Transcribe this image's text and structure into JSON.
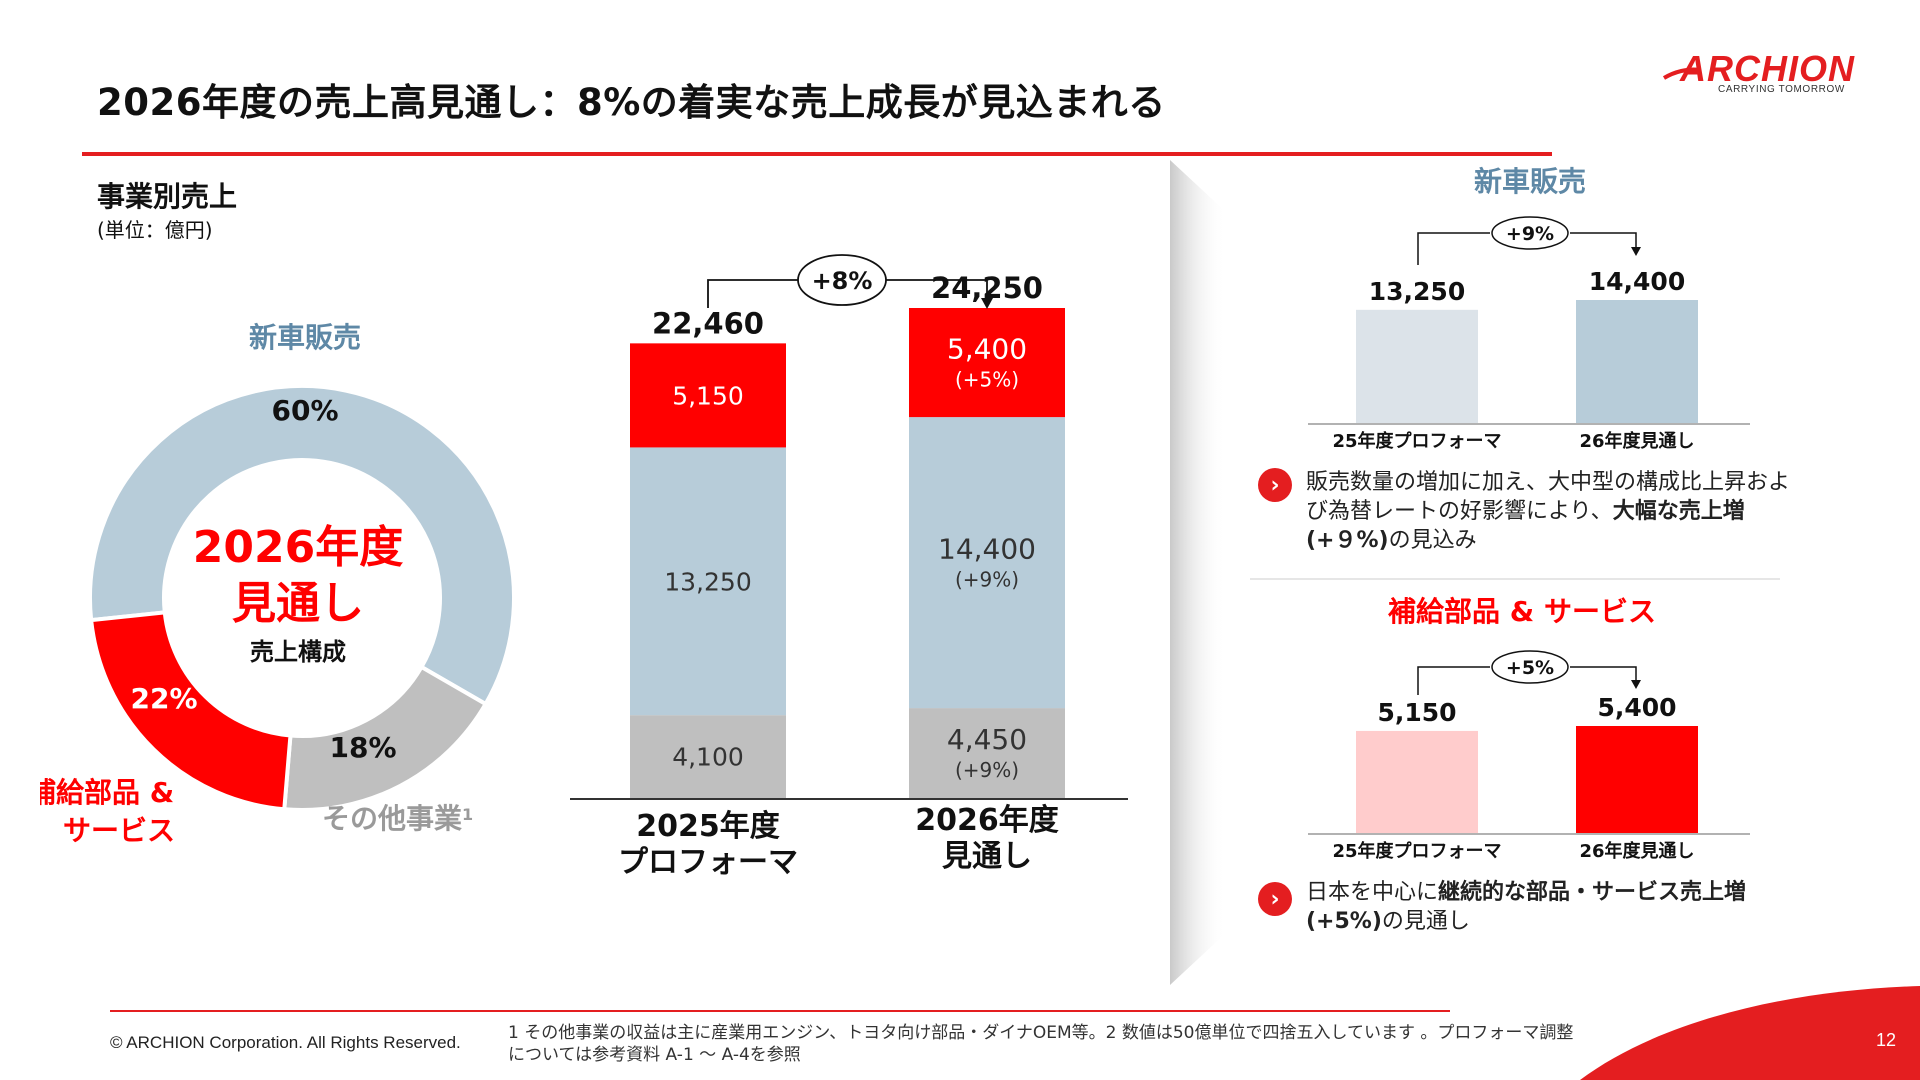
{
  "header": {
    "title": "2026年度の売上高見通し：8%の着実な売上成長が見込まれる",
    "logo_text": "ARCHION",
    "logo_tagline": "CARRYING TOMORROW"
  },
  "section": {
    "title": "事業別売上",
    "unit": "(単位：億円)"
  },
  "colors": {
    "red": "#FF0000",
    "light_blue": "#B7CCD9",
    "grey": "#BFBFBF",
    "pale_blue": "#DCE3E9",
    "pale_pink": "#FFCCCC",
    "label_blue": "#5E88A6"
  },
  "chart_data": [
    {
      "type": "pie",
      "variant": "donut",
      "center_title": "2026年度\n見通し",
      "center_title_line1": "2026年度",
      "center_title_line2": "見通し",
      "center_subtitle": "売上構成",
      "slices": [
        {
          "label": "新車販売",
          "value": 60,
          "value_label": "60%",
          "color": "#B7CCD9"
        },
        {
          "label": "その他事業",
          "footnote_mark": "1",
          "value": 18,
          "value_label": "18%",
          "color": "#BFBFBF"
        },
        {
          "label": "補給部品 & サービス",
          "label_line1": "補給部品 &",
          "label_line2": "サービス",
          "value": 22,
          "value_label": "22%",
          "color": "#FF0000"
        }
      ]
    },
    {
      "type": "bar",
      "stacked": true,
      "categories": [
        "2025年度\nプロフォーマ",
        "2026年度\n見通し"
      ],
      "category_lines": [
        [
          "2025年度",
          "プロフォーマ"
        ],
        [
          "2026年度",
          "見通し"
        ]
      ],
      "totals": [
        22460,
        24250
      ],
      "total_labels": [
        "22,460",
        "24,250"
      ],
      "growth_label": "+8%",
      "ylim": [
        0,
        24250
      ],
      "series": [
        {
          "key": "other",
          "color": "#BFBFBF",
          "values": [
            4100,
            4450
          ],
          "labels": [
            "4,100",
            "4,450"
          ],
          "change": [
            "",
            "(+9%)"
          ]
        },
        {
          "key": "new_car",
          "color": "#B7CCD9",
          "values": [
            13250,
            14400
          ],
          "labels": [
            "13,250",
            "14,400"
          ],
          "change": [
            "",
            "(+9%)"
          ]
        },
        {
          "key": "parts",
          "color": "#FF0000",
          "values": [
            5150,
            5400
          ],
          "labels": [
            "5,150",
            "5,400"
          ],
          "change": [
            "",
            "(+5%)"
          ]
        }
      ]
    },
    {
      "type": "bar",
      "title": "新車販売",
      "categories": [
        "25年度プロフォーマ",
        "26年度見通し"
      ],
      "values": [
        13250,
        14400
      ],
      "value_labels": [
        "13,250",
        "14,400"
      ],
      "colors": [
        "#DCE3E9",
        "#B7CCD9"
      ],
      "growth_label": "+9%",
      "ylim": [
        0,
        14400
      ]
    },
    {
      "type": "bar",
      "title": "補給部品 & サービス",
      "categories": [
        "25年度プロフォーマ",
        "26年度見通し"
      ],
      "values": [
        5150,
        5400
      ],
      "value_labels": [
        "5,150",
        "5,400"
      ],
      "colors": [
        "#FFCCCC",
        "#FF0000"
      ],
      "growth_label": "+5%",
      "ylim": [
        0,
        5400
      ]
    }
  ],
  "bullets": {
    "new_car": {
      "icon": "chevron-right-icon",
      "text_normal_1": "販売数量の増加に加え、大中型の構成比上昇および為替レートの好影響により、",
      "text_bold": "大幅な売上増(+９%)",
      "text_normal_2": "の見込み"
    },
    "parts": {
      "icon": "chevron-right-icon",
      "text_normal_1": "日本を中心に",
      "text_bold": "継続的な部品・サービス売上増(+5%)",
      "text_normal_2": "の見通し"
    }
  },
  "footer": {
    "copyright": "© ARCHION Corporation. All Rights Reserved.",
    "footnote": "1 その他事業の収益は主に産業用エンジン、トヨタ向け部品・ダイナOEM等。2 数値は50億単位で四捨五入しています 。プロフォーマ調整については参考資料 A-1 〜 A-4を参照",
    "page_number": "12"
  }
}
